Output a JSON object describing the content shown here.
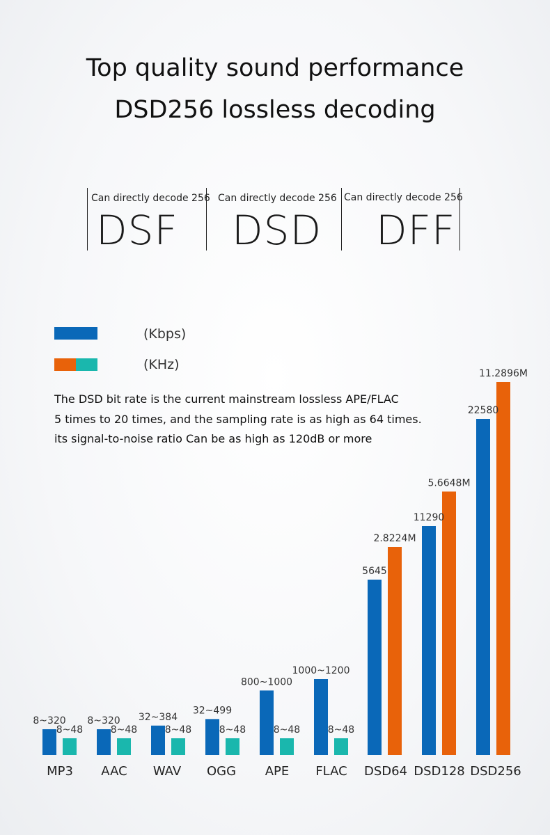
{
  "header": {
    "title_line1": "Top quality sound performance",
    "title_line2": "DSD256 lossless decoding"
  },
  "formats": [
    {
      "caption": "Can directly decode 256",
      "name": "DSF"
    },
    {
      "caption": "Can directly decode 256",
      "name": "DSD"
    },
    {
      "caption": "Can directly decode 256",
      "name": "DFF"
    }
  ],
  "legend": {
    "bitrate_label": "(Kbps)",
    "sampling_label": "(KHz)"
  },
  "description": {
    "line1": "The DSD bit rate is the current mainstream lossless APE/FLAC",
    "line2": "5 times to 20 times, and the sampling rate is as high as 64 times.",
    "line3": "its signal-to-noise ratio Can be as high as 120dB or more"
  },
  "colors": {
    "bitrate_blue": "#0a68b8",
    "sampling_teal": "#1ab7ad",
    "sampling_orange": "#e8620a"
  },
  "chart_data": {
    "type": "bar",
    "categories": [
      "MP3",
      "AAC",
      "WAV",
      "OGG",
      "APE",
      "FLAC",
      "DSD64",
      "DSD128",
      "DSD256"
    ],
    "series": [
      {
        "name": "(Kbps)",
        "color": "#0a68b8",
        "labels": [
          "8~320",
          "8~320",
          "32~384",
          "32~499",
          "800~1000",
          "1000~1200",
          "5645",
          "11290",
          "22580"
        ],
        "values": [
          320,
          320,
          384,
          499,
          1000,
          1200,
          5645,
          11290,
          22580
        ]
      },
      {
        "name": "(KHz)",
        "colors": [
          "#1ab7ad",
          "#1ab7ad",
          "#1ab7ad",
          "#1ab7ad",
          "#1ab7ad",
          "#1ab7ad",
          "#e8620a",
          "#e8620a",
          "#e8620a"
        ],
        "labels": [
          "8~48",
          "8~48",
          "8~48",
          "8~48",
          "8~48",
          "8~48",
          "2.8224M",
          "5.6648M",
          "11.2896M"
        ],
        "values": [
          48,
          48,
          48,
          48,
          48,
          48,
          2822.4,
          5664.8,
          11289.6
        ]
      }
    ]
  }
}
